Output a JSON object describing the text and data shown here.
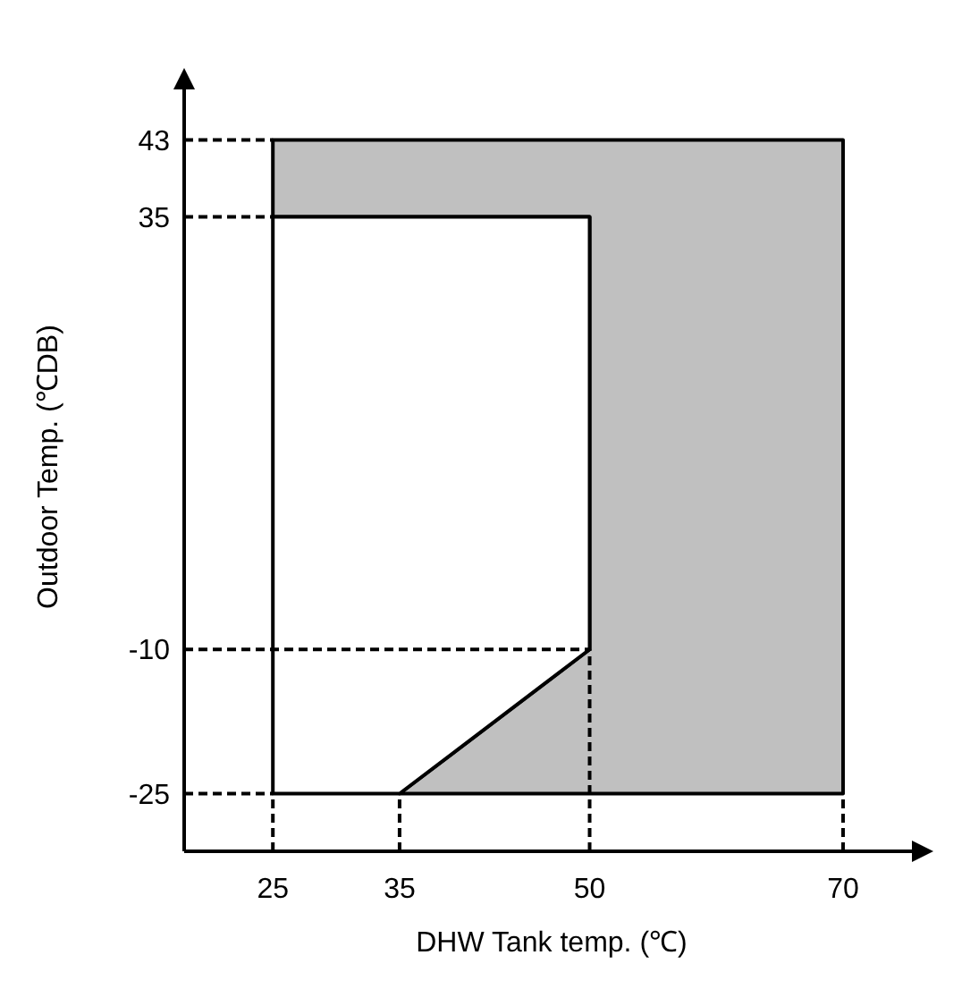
{
  "chart_data": {
    "type": "line",
    "xlabel": "DHW Tank temp. (℃)",
    "ylabel": "Outdoor Temp. (℃DB)",
    "xlim": [
      18,
      76
    ],
    "ylim": [
      -31,
      49
    ],
    "xticks": [
      25,
      35,
      50,
      70
    ],
    "yticks": [
      -25,
      -10,
      35,
      43
    ],
    "series": [
      {
        "type": "area",
        "x": [
          25,
          70,
          70,
          35,
          50,
          50,
          25
        ],
        "values": [
          43,
          43,
          -25,
          -25,
          -10,
          35,
          35
        ],
        "color": "#c0c0c0"
      },
      {
        "type": "area",
        "x": [
          25,
          50,
          50,
          35,
          25
        ],
        "values": [
          35,
          35,
          -10,
          -25,
          -25
        ],
        "color": "#ffffff"
      },
      {
        "x": [
          18,
          25
        ],
        "values": [
          43,
          43
        ],
        "color": "#000000",
        "line_style": "dashed"
      },
      {
        "x": [
          18,
          25
        ],
        "values": [
          35,
          35
        ],
        "color": "#000000",
        "line_style": "dashed"
      },
      {
        "x": [
          18,
          50
        ],
        "values": [
          -10,
          -10
        ],
        "color": "#000000",
        "line_style": "dashed"
      },
      {
        "x": [
          18,
          25
        ],
        "values": [
          -25,
          -25
        ],
        "color": "#000000",
        "line_style": "dashed"
      },
      {
        "x": [
          25,
          25
        ],
        "values": [
          -31,
          -25
        ],
        "color": "#000000",
        "line_style": "dashed"
      },
      {
        "x": [
          35,
          35
        ],
        "values": [
          -31,
          -25
        ],
        "color": "#000000",
        "line_style": "dashed"
      },
      {
        "x": [
          50,
          50
        ],
        "values": [
          -31,
          -10
        ],
        "color": "#000000",
        "line_style": "dashed"
      },
      {
        "x": [
          70,
          70
        ],
        "values": [
          -31,
          -25
        ],
        "color": "#000000",
        "line_style": "dashed"
      }
    ]
  }
}
